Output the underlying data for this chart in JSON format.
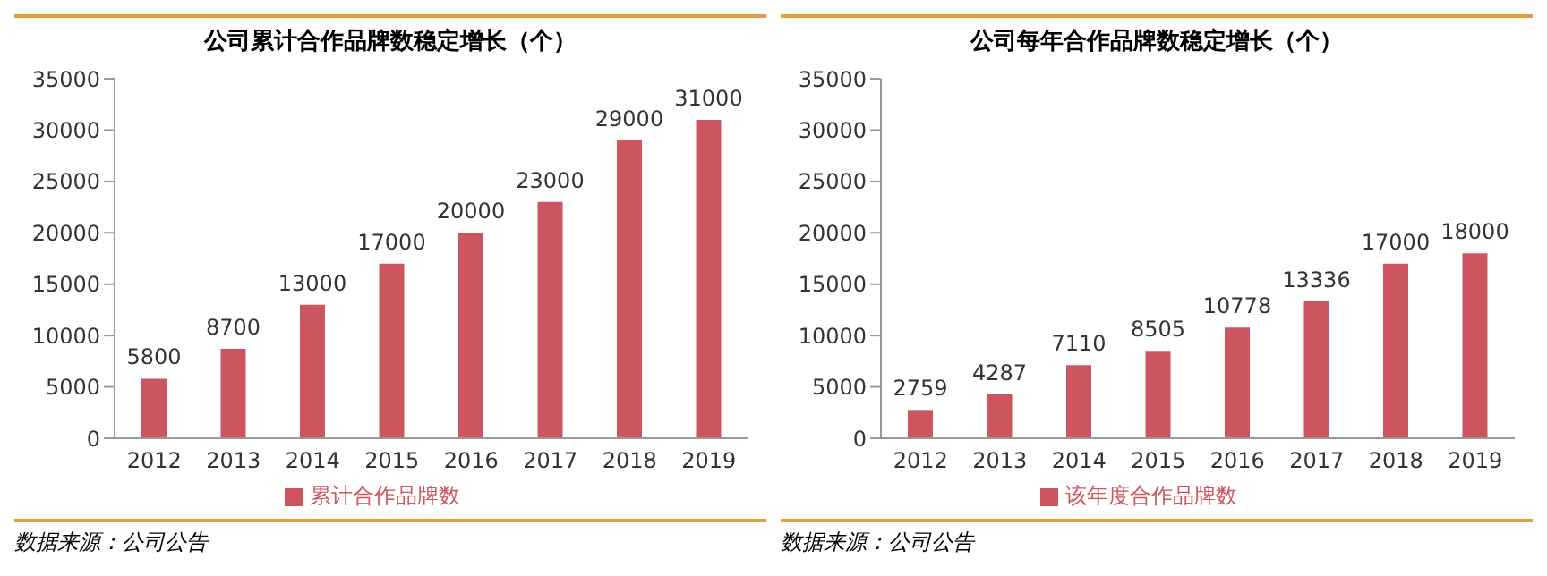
{
  "chart_data": [
    {
      "type": "bar",
      "title": "公司累计合作品牌数稳定增长（个）",
      "categories": [
        "2012",
        "2013",
        "2014",
        "2015",
        "2016",
        "2017",
        "2018",
        "2019"
      ],
      "series": [
        {
          "name": "累计合作品牌数",
          "color": "#cc5560",
          "values": [
            5800,
            8700,
            13000,
            17000,
            20000,
            23000,
            29000,
            31000
          ]
        }
      ],
      "ylim": [
        0,
        35000
      ],
      "yticks": [
        0,
        5000,
        10000,
        15000,
        20000,
        25000,
        30000,
        35000
      ],
      "data_labels": true,
      "grid": false,
      "legend": "bottom",
      "annotations": [
        "数据来源：公司公告"
      ]
    },
    {
      "type": "bar",
      "title": "公司每年合作品牌数稳定增长（个）",
      "categories": [
        "2012",
        "2013",
        "2014",
        "2015",
        "2016",
        "2017",
        "2018",
        "2019"
      ],
      "series": [
        {
          "name": "该年度合作品牌数",
          "color": "#cc5560",
          "values": [
            2759,
            4287,
            7110,
            8505,
            10778,
            13336,
            17000,
            18000
          ]
        }
      ],
      "ylim": [
        0,
        35000
      ],
      "yticks": [
        0,
        5000,
        10000,
        15000,
        20000,
        25000,
        30000,
        35000
      ],
      "data_labels": true,
      "grid": false,
      "legend": "bottom",
      "annotations": [
        "数据来源：公司公告"
      ]
    }
  ]
}
